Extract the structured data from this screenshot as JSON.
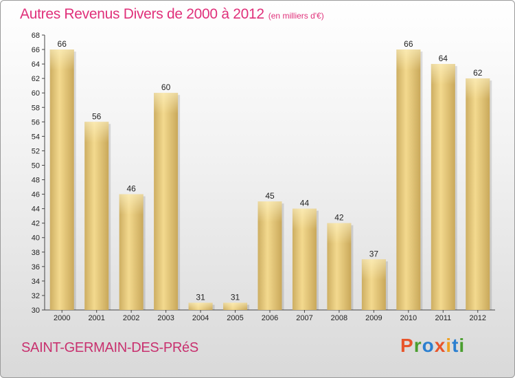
{
  "title": "Autres Revenus Divers de 2000 à 2012",
  "unit_note": "(en milliers d'€)",
  "city": "SAINT-GERMAIN-DES-PRéS",
  "logo": {
    "letters": [
      "P",
      "r",
      "o",
      "x",
      "i",
      "t",
      "i"
    ],
    "colors": [
      "#e8552b",
      "#4a9e2f",
      "#2b7fd0",
      "#e8552b",
      "#f0a020",
      "#2b7fd0",
      "#4a9e2f"
    ]
  },
  "colors": {
    "bar": "#e8c878",
    "title": "#e0307a",
    "city": "#c8306e"
  },
  "chart_data": {
    "type": "bar",
    "title": "Autres Revenus Divers de 2000 à 2012",
    "subtitle": "(en milliers d'€)",
    "xlabel": "",
    "ylabel": "",
    "categories": [
      "2000",
      "2001",
      "2002",
      "2003",
      "2004",
      "2005",
      "2006",
      "2007",
      "2008",
      "2009",
      "2010",
      "2011",
      "2012"
    ],
    "values": [
      66,
      56,
      46,
      60,
      31,
      31,
      45,
      44,
      42,
      37,
      66,
      64,
      62
    ],
    "ylim": [
      30,
      68
    ],
    "yticks": [
      30,
      32,
      34,
      36,
      38,
      40,
      42,
      44,
      46,
      48,
      50,
      52,
      54,
      56,
      58,
      60,
      62,
      64,
      66,
      68
    ],
    "grid": false,
    "legend": "none"
  }
}
